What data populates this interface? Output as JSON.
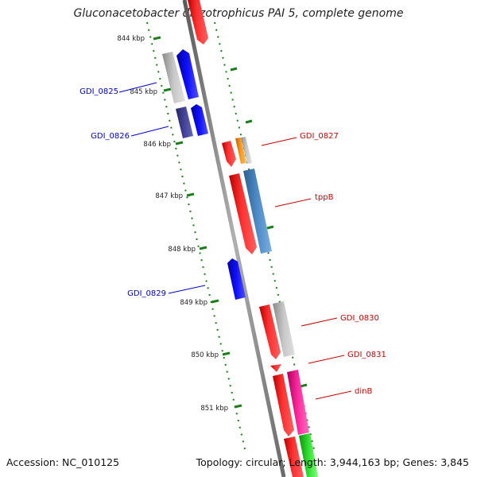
{
  "map": {
    "title": "Gluconacetobacter diazotrophicus PAI 5, complete genome",
    "accession": "Accession: NC_010125",
    "topology": "Topology: circular; Length: 3,944,163 bp; Genes: 3,845"
  },
  "ticks": [
    "844 kbp",
    "845 kbp",
    "846 kbp",
    "847 kbp",
    "848 kbp",
    "849 kbp",
    "850 kbp",
    "851 kbp"
  ],
  "gene_labels": [
    {
      "text": "GDI_0825",
      "strand": "minus",
      "color": "#0000cc"
    },
    {
      "text": "GDI_0826",
      "strand": "minus",
      "color": "#0000cc"
    },
    {
      "text": "GDI_0827",
      "strand": "plus",
      "color": "#cc0000"
    },
    {
      "text": "tppB",
      "strand": "plus",
      "color": "#cc0000"
    },
    {
      "text": "GDI_0829",
      "strand": "minus",
      "color": "#0000cc"
    },
    {
      "text": "GDI_0830",
      "strand": "plus",
      "color": "#cc0000"
    },
    {
      "text": "GDI_0831",
      "strand": "plus",
      "color": "#cc0000"
    },
    {
      "text": "dinB",
      "strand": "plus",
      "color": "#cc0000"
    }
  ],
  "colors": {
    "backbone": "#888888",
    "tick_marks": "#1a7f1a",
    "cds": "#ff0000",
    "minus_cds": "#0000ee",
    "rna": "#ff8c00",
    "pseudo_gray": "#b0b0b0",
    "cog_steelblue": "#4a86c0",
    "cog_purple": "#3c3c8c",
    "cog_pink": "#ff1493",
    "cog_green": "#22cc22"
  }
}
